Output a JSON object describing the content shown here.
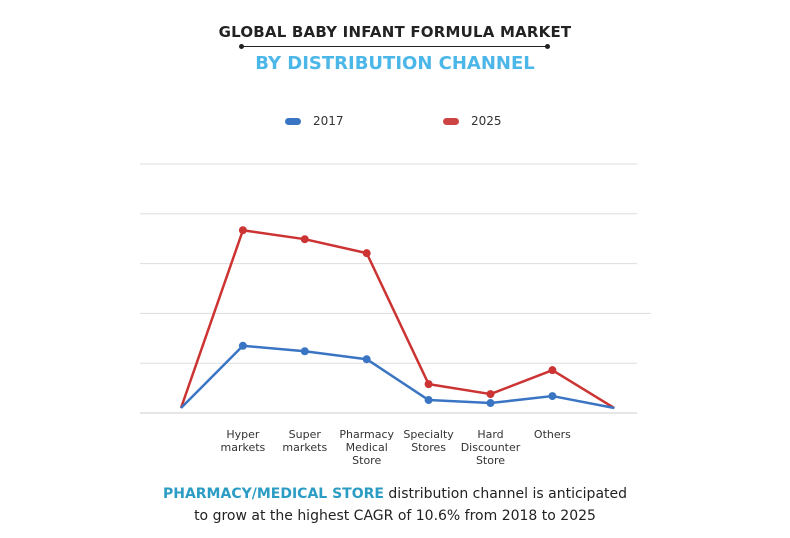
{
  "title": "GLOBAL BABY INFANT FORMULA MARKET",
  "subtitle": "BY DISTRIBUTION CHANNEL",
  "footer": {
    "highlight": "PHARMACY/MEDICAL STORE",
    "text_line1": " distribution channel is anticipated",
    "text_line2": "to grow at the highest CAGR of 10.6% from 2018 to 2025"
  },
  "colors": {
    "series_2017": "#3a75c4",
    "series_2025": "#cc3333",
    "title": "#222222",
    "subtitle": "#4bb6e8",
    "highlight": "#2b9cc3"
  },
  "chart_data": {
    "type": "line",
    "title": "GLOBAL BABY INFANT FORMULA MARKET BY DISTRIBUTION CHANNEL",
    "categories": [
      "",
      "Hyper markets",
      "Super markets",
      "Pharmacy Medical Store",
      "Specialty Stores",
      "Hard Discounter Store",
      "Others",
      ""
    ],
    "category_lines": [
      [],
      [
        "Hyper",
        "markets"
      ],
      [
        "Super",
        "markets"
      ],
      [
        "Pharmacy",
        "Medical",
        "Store"
      ],
      [
        "Specialty",
        "Stores"
      ],
      [
        "Hard",
        "Discounter",
        "Store"
      ],
      [
        "Others"
      ],
      []
    ],
    "series": [
      {
        "name": "2017",
        "values": [
          0.1,
          1.35,
          1.24,
          1.08,
          0.26,
          0.2,
          0.34,
          0.1
        ]
      },
      {
        "name": "2025",
        "values": [
          0.1,
          3.67,
          3.49,
          3.21,
          0.58,
          0.38,
          0.86,
          0.1
        ]
      }
    ],
    "ylim": [
      0,
      5
    ],
    "y_tick_labels": "none",
    "grid": true,
    "legend": "top-center",
    "markers_on": [
      1,
      2,
      3,
      4,
      5,
      6
    ]
  }
}
